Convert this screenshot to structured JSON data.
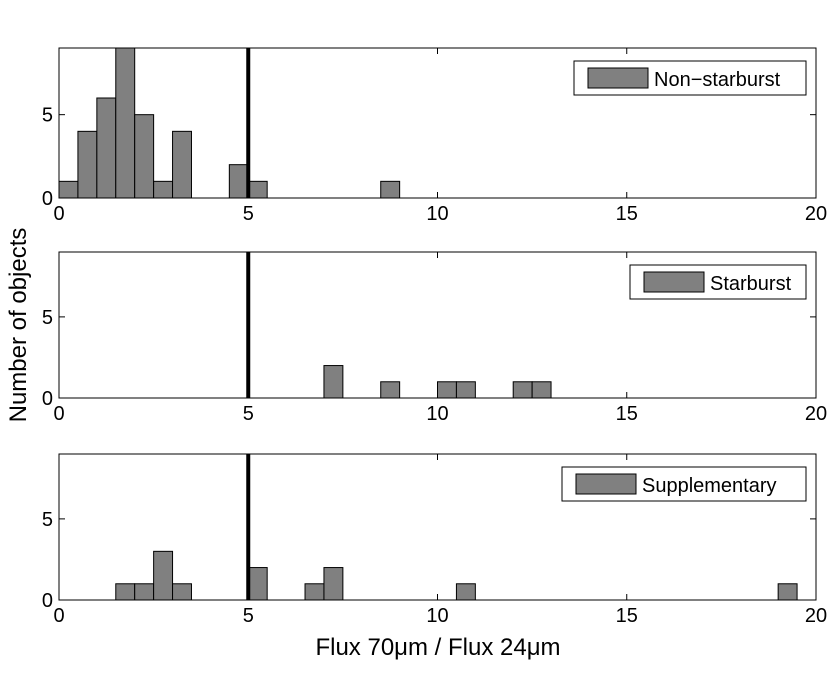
{
  "figure": {
    "ylabel": "Number of objects",
    "xlabel": "Flux 70μm / Flux 24μm"
  },
  "colors": {
    "bar_fill": "#808080",
    "bar_stroke": "#000000",
    "threshold_line": "#000000"
  },
  "chart_data": [
    {
      "type": "bar",
      "legend": "Non−starburst",
      "legend_position": "top-right",
      "xlim": [
        0,
        20
      ],
      "ylim": [
        0,
        9
      ],
      "xticks": [
        0,
        5,
        10,
        15,
        20
      ],
      "yticks": [
        0,
        5
      ],
      "bin_width": 0.5,
      "threshold_x": 5,
      "bins": [
        {
          "x": 0.25,
          "y": 1
        },
        {
          "x": 0.75,
          "y": 4
        },
        {
          "x": 1.25,
          "y": 6
        },
        {
          "x": 1.75,
          "y": 9
        },
        {
          "x": 2.25,
          "y": 5
        },
        {
          "x": 2.75,
          "y": 1
        },
        {
          "x": 3.25,
          "y": 4
        },
        {
          "x": 4.75,
          "y": 2
        },
        {
          "x": 5.25,
          "y": 1
        },
        {
          "x": 8.75,
          "y": 1
        }
      ]
    },
    {
      "type": "bar",
      "legend": "Starburst",
      "legend_position": "top-right",
      "xlim": [
        0,
        20
      ],
      "ylim": [
        0,
        9
      ],
      "xticks": [
        0,
        5,
        10,
        15,
        20
      ],
      "yticks": [
        0,
        5
      ],
      "bin_width": 0.5,
      "threshold_x": 5,
      "bins": [
        {
          "x": 7.25,
          "y": 2
        },
        {
          "x": 8.75,
          "y": 1
        },
        {
          "x": 10.25,
          "y": 1
        },
        {
          "x": 10.75,
          "y": 1
        },
        {
          "x": 12.25,
          "y": 1
        },
        {
          "x": 12.75,
          "y": 1
        }
      ]
    },
    {
      "type": "bar",
      "legend": "Supplementary",
      "legend_position": "top-right",
      "xlim": [
        0,
        20
      ],
      "ylim": [
        0,
        9
      ],
      "xticks": [
        0,
        5,
        10,
        15,
        20
      ],
      "yticks": [
        0,
        5
      ],
      "bin_width": 0.5,
      "threshold_x": 5,
      "bins": [
        {
          "x": 1.75,
          "y": 1
        },
        {
          "x": 2.25,
          "y": 1
        },
        {
          "x": 2.75,
          "y": 3
        },
        {
          "x": 3.25,
          "y": 1
        },
        {
          "x": 5.25,
          "y": 2
        },
        {
          "x": 6.75,
          "y": 1
        },
        {
          "x": 7.25,
          "y": 2
        },
        {
          "x": 10.75,
          "y": 1
        },
        {
          "x": 19.25,
          "y": 1
        }
      ]
    }
  ]
}
